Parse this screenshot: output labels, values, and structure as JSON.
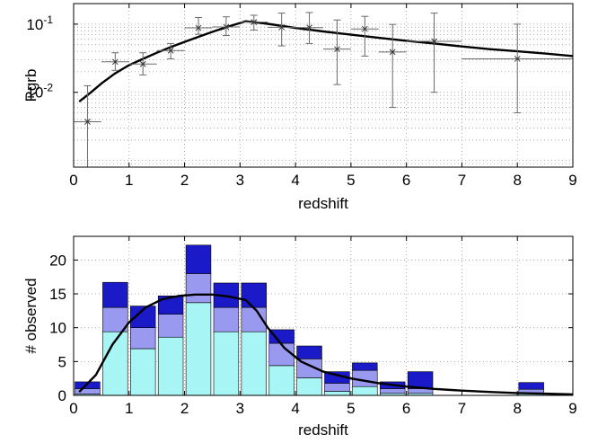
{
  "chart_data": [
    {
      "type": "scatter",
      "xlabel": "redshift",
      "ylabel": "Rgrb",
      "xlim": [
        0,
        9
      ],
      "ylim": [
        0.0008,
        0.2
      ],
      "yscale": "log",
      "grid": true,
      "xticks": [
        "0",
        "1",
        "2",
        "3",
        "4",
        "5",
        "6",
        "7",
        "8",
        "9"
      ],
      "yticks": [
        {
          "value": 0.01,
          "base": "10",
          "exp": "-2"
        },
        {
          "value": 0.1,
          "base": "10",
          "exp": "-1"
        }
      ],
      "points": [
        {
          "x": 0.25,
          "y": 0.0037,
          "xerr": 0.25,
          "ylo": 0.0004,
          "yhi": 0.0125
        },
        {
          "x": 0.75,
          "y": 0.028,
          "xerr": 0.25,
          "ylo": 0.021,
          "yhi": 0.038
        },
        {
          "x": 1.25,
          "y": 0.026,
          "xerr": 0.25,
          "ylo": 0.018,
          "yhi": 0.038
        },
        {
          "x": 1.75,
          "y": 0.041,
          "xerr": 0.25,
          "ylo": 0.031,
          "yhi": 0.052
        },
        {
          "x": 2.25,
          "y": 0.088,
          "xerr": 0.25,
          "ylo": 0.071,
          "yhi": 0.125
        },
        {
          "x": 2.75,
          "y": 0.091,
          "xerr": 0.25,
          "ylo": 0.068,
          "yhi": 0.128
        },
        {
          "x": 3.25,
          "y": 0.107,
          "xerr": 0.25,
          "ylo": 0.082,
          "yhi": 0.135
        },
        {
          "x": 3.75,
          "y": 0.09,
          "xerr": 0.25,
          "ylo": 0.048,
          "yhi": 0.145
        },
        {
          "x": 4.25,
          "y": 0.089,
          "xerr": 0.25,
          "ylo": 0.052,
          "yhi": 0.148
        },
        {
          "x": 4.75,
          "y": 0.043,
          "xerr": 0.25,
          "ylo": 0.013,
          "yhi": 0.115
        },
        {
          "x": 5.25,
          "y": 0.085,
          "xerr": 0.25,
          "ylo": 0.034,
          "yhi": 0.13
        },
        {
          "x": 5.75,
          "y": 0.039,
          "xerr": 0.25,
          "ylo": 0.006,
          "yhi": 0.099
        },
        {
          "x": 6.5,
          "y": 0.056,
          "xerr": 0.5,
          "ylo": 0.01,
          "yhi": 0.145
        },
        {
          "x": 8.0,
          "y": 0.031,
          "xerr": 1.0,
          "ylo": 0.005,
          "yhi": 0.1
        }
      ],
      "curve": {
        "x": [
          0.1,
          0.3,
          0.5,
          0.75,
          1.0,
          1.25,
          1.5,
          1.75,
          2.0,
          2.25,
          2.5,
          2.75,
          3.0,
          3.1,
          3.3,
          3.5,
          4.0,
          4.5,
          5.0,
          5.5,
          6.0,
          6.5,
          7.0,
          7.5,
          8.0,
          8.5,
          9.0
        ],
        "y": [
          0.0073,
          0.0098,
          0.0135,
          0.019,
          0.025,
          0.031,
          0.038,
          0.046,
          0.055,
          0.065,
          0.077,
          0.09,
          0.104,
          0.11,
          0.106,
          0.101,
          0.088,
          0.078,
          0.07,
          0.063,
          0.057,
          0.052,
          0.047,
          0.043,
          0.04,
          0.037,
          0.034
        ]
      }
    },
    {
      "type": "bar",
      "stacked": true,
      "xlabel": "redshift",
      "ylabel": "# observed",
      "xlim": [
        0,
        9
      ],
      "ylim": [
        0,
        23.5
      ],
      "grid": true,
      "xticks": [
        "0",
        "1",
        "2",
        "3",
        "4",
        "5",
        "6",
        "7",
        "8",
        "9"
      ],
      "yticks": [
        "0",
        "5",
        "10",
        "15",
        "20"
      ],
      "bar_width": 0.45,
      "bins": [
        0.25,
        0.75,
        1.25,
        1.75,
        2.25,
        2.75,
        3.25,
        3.75,
        4.25,
        4.75,
        5.25,
        5.75,
        6.25,
        8.25
      ],
      "series": [
        {
          "color": "#a8f5f5",
          "values": [
            0.2,
            9.4,
            6.9,
            8.6,
            13.7,
            9.4,
            9.4,
            4.4,
            2.6,
            0.6,
            1.3,
            0.3,
            0.3,
            0.3
          ]
        },
        {
          "color": "#9999f0",
          "values": [
            0.8,
            3.6,
            3.1,
            3.4,
            4.3,
            3.6,
            3.6,
            3.3,
            2.8,
            1.2,
            2.4,
            0.7,
            0.7,
            0.6
          ]
        },
        {
          "color": "#1a1ac8",
          "values": [
            1.0,
            3.7,
            3.2,
            2.7,
            4.2,
            3.6,
            3.6,
            2.0,
            1.9,
            1.7,
            1.1,
            1.0,
            2.5,
            1.0
          ]
        }
      ],
      "curve": {
        "x": [
          0.1,
          0.4,
          0.7,
          1.0,
          1.3,
          1.6,
          1.9,
          2.2,
          2.5,
          2.8,
          3.1,
          3.3,
          3.5,
          3.8,
          4.1,
          4.5,
          5.0,
          5.5,
          6.0,
          6.5,
          7.0,
          7.5,
          8.0,
          8.5,
          9.0
        ],
        "y": [
          0.5,
          3.0,
          7.5,
          10.8,
          13.0,
          14.2,
          14.7,
          14.9,
          14.9,
          14.6,
          14.1,
          12.5,
          10.0,
          7.0,
          5.0,
          3.5,
          2.5,
          1.8,
          1.3,
          0.95,
          0.7,
          0.5,
          0.35,
          0.25,
          0.15
        ]
      }
    }
  ]
}
